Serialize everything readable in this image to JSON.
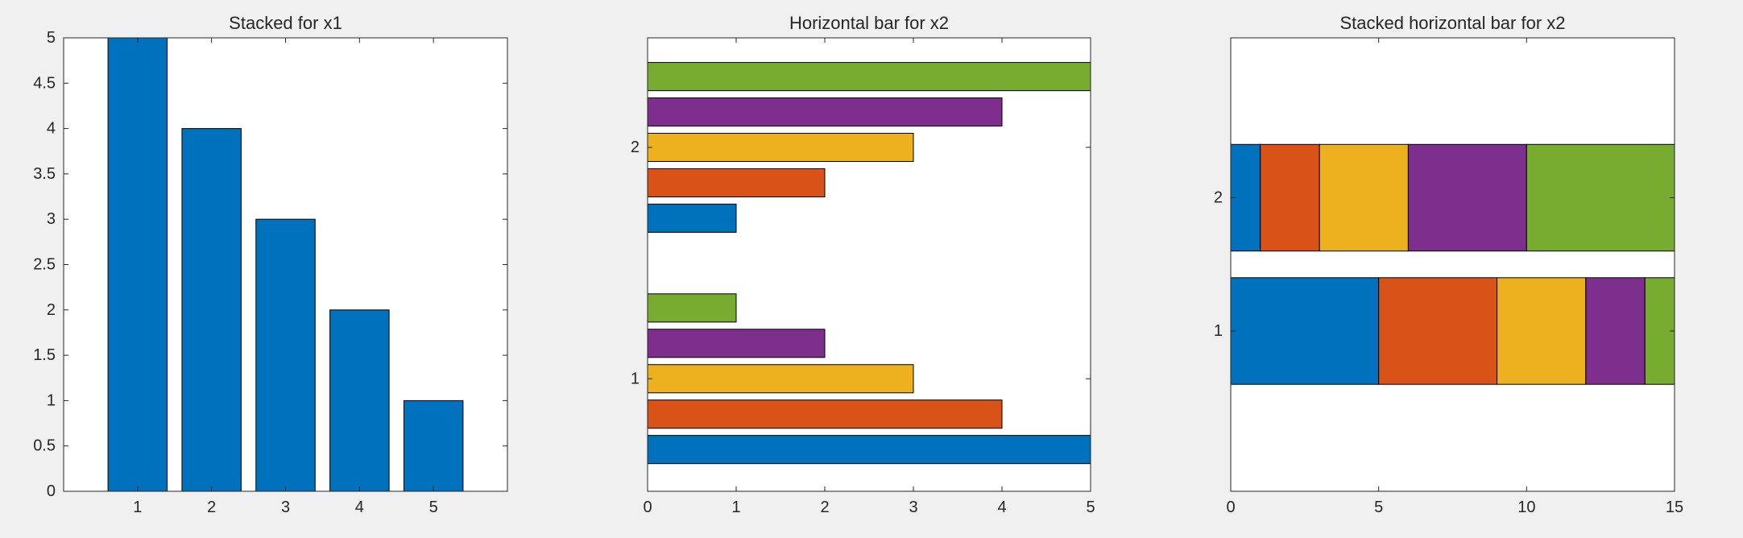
{
  "colors": {
    "c1": "#0072BD",
    "c2": "#D95319",
    "c3": "#EDB120",
    "c4": "#7E2F8E",
    "c5": "#77AC30"
  },
  "chart_data": [
    {
      "type": "bar",
      "title": "Stacked for x1",
      "categories": [
        "1",
        "2",
        "3",
        "4",
        "5"
      ],
      "values": [
        5,
        4,
        3,
        2,
        1
      ],
      "xlim": [
        0,
        6
      ],
      "ylim": [
        0,
        5
      ],
      "yticks": [
        0,
        0.5,
        1,
        1.5,
        2,
        2.5,
        3,
        3.5,
        4,
        4.5,
        5
      ],
      "ytick_labels": [
        "0",
        "0.5",
        "1",
        "1.5",
        "2",
        "2.5",
        "3",
        "3.5",
        "4",
        "4.5",
        "5"
      ],
      "grid": false
    },
    {
      "type": "bar",
      "orientation": "horizontal",
      "title": "Horizontal bar for x2",
      "categories": [
        "1",
        "2"
      ],
      "series": [
        {
          "values": [
            5,
            1
          ],
          "color": "c1"
        },
        {
          "values": [
            4,
            2
          ],
          "color": "c2"
        },
        {
          "values": [
            3,
            3
          ],
          "color": "c3"
        },
        {
          "values": [
            2,
            4
          ],
          "color": "c4"
        },
        {
          "values": [
            1,
            5
          ],
          "color": "c5"
        }
      ],
      "xlim": [
        0,
        5
      ],
      "xticks": [
        0,
        1,
        2,
        3,
        4,
        5
      ],
      "xtick_labels": [
        "0",
        "1",
        "2",
        "3",
        "4",
        "5"
      ],
      "grid": false
    },
    {
      "type": "bar",
      "orientation": "horizontal",
      "stacked": true,
      "title": "Stacked horizontal bar for x2",
      "categories": [
        "1",
        "2"
      ],
      "series": [
        {
          "values": [
            5,
            1
          ],
          "color": "c1"
        },
        {
          "values": [
            4,
            2
          ],
          "color": "c2"
        },
        {
          "values": [
            3,
            3
          ],
          "color": "c3"
        },
        {
          "values": [
            2,
            4
          ],
          "color": "c4"
        },
        {
          "values": [
            1,
            5
          ],
          "color": "c5"
        }
      ],
      "xlim": [
        0,
        15
      ],
      "xticks": [
        0,
        5,
        10,
        15
      ],
      "xtick_labels": [
        "0",
        "5",
        "10",
        "15"
      ],
      "grid": false
    }
  ]
}
